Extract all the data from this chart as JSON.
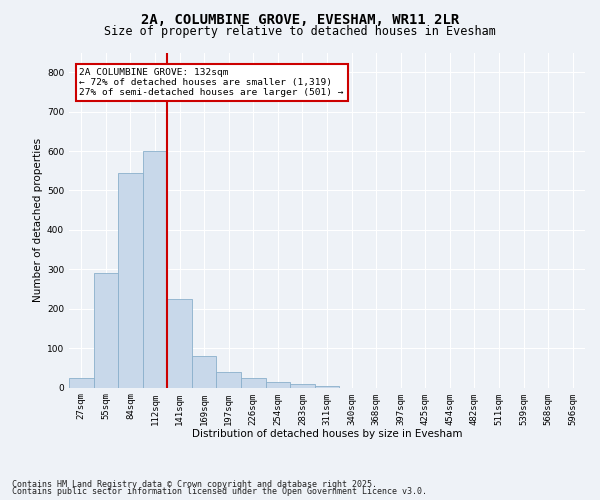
{
  "title1": "2A, COLUMBINE GROVE, EVESHAM, WR11 2LR",
  "title2": "Size of property relative to detached houses in Evesham",
  "xlabel": "Distribution of detached houses by size in Evesham",
  "ylabel": "Number of detached properties",
  "bar_color": "#c8d8ea",
  "bar_edge_color": "#8ab0cc",
  "categories": [
    "27sqm",
    "55sqm",
    "84sqm",
    "112sqm",
    "141sqm",
    "169sqm",
    "197sqm",
    "226sqm",
    "254sqm",
    "283sqm",
    "311sqm",
    "340sqm",
    "368sqm",
    "397sqm",
    "425sqm",
    "454sqm",
    "482sqm",
    "511sqm",
    "539sqm",
    "568sqm",
    "596sqm"
  ],
  "values": [
    25,
    290,
    545,
    600,
    225,
    80,
    40,
    25,
    15,
    10,
    5,
    0,
    0,
    0,
    0,
    0,
    0,
    0,
    0,
    0,
    0
  ],
  "ylim": [
    0,
    850
  ],
  "yticks": [
    0,
    100,
    200,
    300,
    400,
    500,
    600,
    700,
    800
  ],
  "annotation_line1": "2A COLUMBINE GROVE: 132sqm",
  "annotation_line2": "← 72% of detached houses are smaller (1,319)",
  "annotation_line3": "27% of semi-detached houses are larger (501) →",
  "annotation_box_color": "#ffffff",
  "annotation_box_edge": "#cc0000",
  "footer1": "Contains HM Land Registry data © Crown copyright and database right 2025.",
  "footer2": "Contains public sector information licensed under the Open Government Licence v3.0.",
  "bg_color": "#eef2f7",
  "grid_color": "#ffffff",
  "title1_fontsize": 10,
  "title2_fontsize": 8.5,
  "tick_fontsize": 6.5,
  "label_fontsize": 7.5,
  "footer_fontsize": 6
}
